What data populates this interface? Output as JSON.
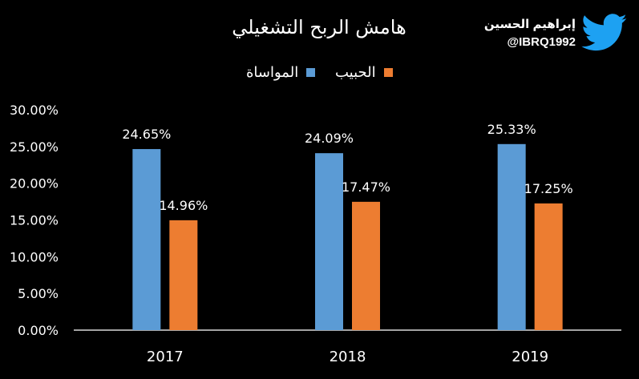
{
  "chart_data": {
    "type": "bar",
    "title": "هامش الربح التشغيلي",
    "xlabel": "",
    "ylabel": "",
    "categories": [
      "2017",
      "2018",
      "2019"
    ],
    "series": [
      {
        "name": "المواساة",
        "color": "#5B9BD5",
        "values": [
          24.65,
          24.09,
          25.33
        ],
        "labels": [
          "24.65%",
          "24.09%",
          "25.33%"
        ]
      },
      {
        "name": "الحبيب",
        "color": "#ED7D31",
        "values": [
          14.96,
          17.47,
          17.25
        ],
        "labels": [
          "14.96%",
          "17.47%",
          "17.25%"
        ]
      }
    ],
    "ylim": [
      0,
      30
    ],
    "yticks": [
      0,
      5,
      10,
      15,
      20,
      25,
      30
    ],
    "ytick_labels": [
      "0.00%",
      "5.00%",
      "10.00%",
      "15.00%",
      "20.00%",
      "25.00%",
      "30.00%"
    ],
    "grid": false,
    "legend_position": "top-center",
    "background": "#000000",
    "text_color": "#ffffff"
  },
  "author": {
    "name": "إبراهيم الحسين",
    "handle": "@IBRQ1992",
    "icon": "twitter-bird-icon",
    "icon_color": "#1DA1F2"
  }
}
